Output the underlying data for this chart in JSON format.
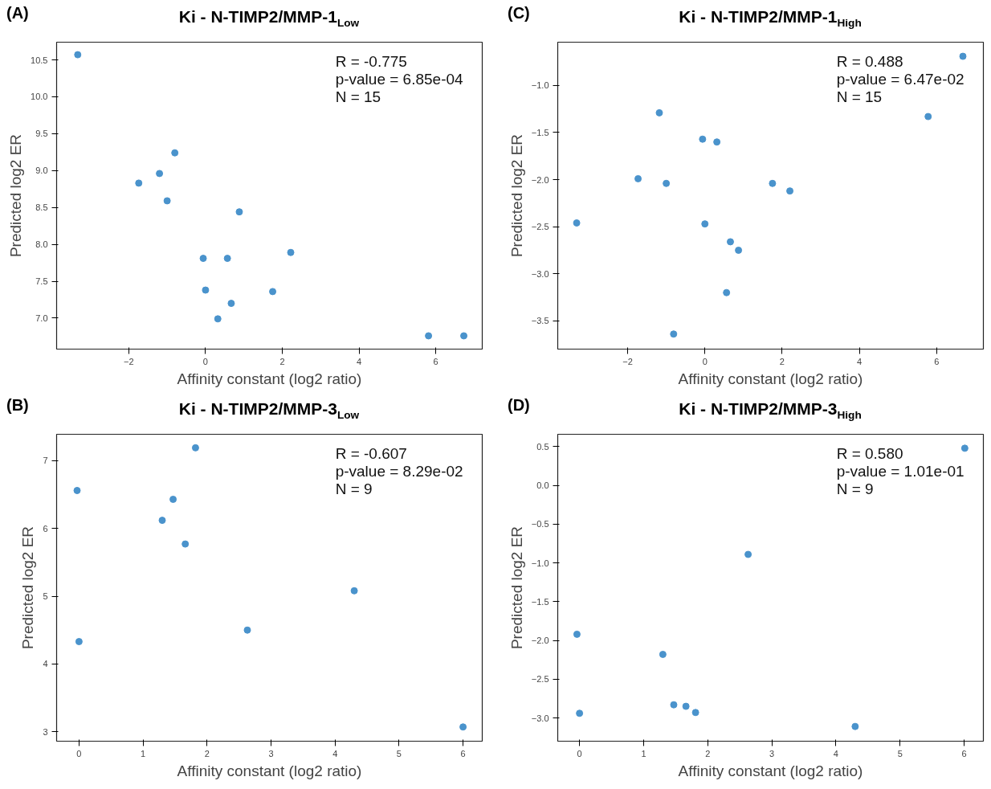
{
  "chart_data": [
    {
      "type": "scatter",
      "title": "Ki - N-TIMP2/MMP-1$_{Low}$",
      "xlabel": "Affinity constant (log2 ratio)",
      "ylabel": "Predicted log2 ER",
      "annotations": [
        "(A)",
        "R = -0.775",
        "p-value = 6.85e-04",
        "N = 15"
      ],
      "marker": "circle",
      "color": "#4a93cc",
      "x": [
        -3.33,
        -0.8,
        -1.2,
        -1.74,
        -1.0,
        0.88,
        -0.06,
        0.57,
        2.22,
        0.0,
        1.75,
        0.67,
        0.32,
        5.81,
        6.73
      ],
      "values": [
        10.57,
        9.24,
        8.96,
        8.83,
        8.59,
        8.44,
        7.81,
        7.81,
        7.89,
        7.38,
        7.36,
        7.2,
        6.99,
        6.76,
        6.76
      ],
      "xlim": [
        -3.88,
        7.21
      ],
      "ylim": [
        6.58,
        10.74
      ],
      "xticks": [
        {
          "value": -2,
          "label": "−2"
        },
        0,
        2,
        4,
        6
      ],
      "yticks": [
        {
          "value": 7,
          "label": "7.0"
        },
        7.5,
        {
          "value": 8,
          "label": "8.0"
        },
        8.5,
        {
          "value": 9,
          "label": "9.0"
        },
        9.5,
        {
          "value": 10,
          "label": "10.0"
        },
        10.5
      ]
    },
    {
      "type": "scatter",
      "title": "Ki - N-TIMP2/MMP-1$_{High}$",
      "xlabel": "Affinity constant (log2 ratio)",
      "ylabel": "Predicted log2 ER",
      "annotations": [
        "(C)",
        "R = 0.488",
        "p-value = 6.47e-02",
        "N = 15"
      ],
      "marker": "circle",
      "color": "#4a93cc",
      "x": [
        6.68,
        -1.18,
        5.78,
        -0.06,
        0.31,
        -1.73,
        -1.0,
        1.75,
        2.2,
        -3.32,
        0.0,
        0.66,
        0.87,
        0.56,
        -0.81
      ],
      "values": [
        -0.69,
        -1.29,
        -1.33,
        -1.57,
        -1.6,
        -1.99,
        -2.04,
        -2.04,
        -2.12,
        -2.46,
        -2.47,
        -2.66,
        -2.75,
        -3.2,
        -3.64
      ],
      "xlim": [
        -3.81,
        7.21
      ],
      "ylim": [
        -3.8,
        -0.54
      ],
      "xticks": [
        {
          "value": -2,
          "label": "−2"
        },
        0,
        2,
        4,
        6
      ],
      "yticks": [
        {
          "value": -3.5,
          "label": "−3.5"
        },
        {
          "value": -3,
          "label": "−3.0"
        },
        {
          "value": -2.5,
          "label": "−2.5"
        },
        {
          "value": -2,
          "label": "−2.0"
        },
        {
          "value": -1.5,
          "label": "−1.5"
        },
        {
          "value": -1,
          "label": "−1.0"
        }
      ]
    },
    {
      "type": "scatter",
      "title": "Ki - N-TIMP2/MMP-3$_{Low}$",
      "xlabel": "Affinity constant (log2 ratio)",
      "ylabel": "Predicted log2 ER",
      "annotations": [
        "(B)",
        "R = -0.607",
        "p-value = 8.29e-02",
        "N = 9"
      ],
      "marker": "circle",
      "color": "#4a93cc",
      "x": [
        -0.03,
        0.0,
        1.82,
        1.47,
        1.3,
        1.66,
        2.63,
        4.3,
        6.0
      ],
      "values": [
        6.56,
        4.33,
        7.19,
        6.43,
        6.12,
        5.77,
        4.5,
        5.08,
        3.07
      ],
      "xlim": [
        -0.35,
        6.3
      ],
      "ylim": [
        2.86,
        7.39
      ],
      "xticks": [
        0,
        1,
        2,
        3,
        4,
        5,
        6
      ],
      "yticks": [
        3,
        4,
        5,
        6,
        7
      ]
    },
    {
      "type": "scatter",
      "title": "Ki - N-TIMP2/MMP-3$_{High}$",
      "xlabel": "Affinity constant (log2 ratio)",
      "ylabel": "Predicted log2 ER",
      "annotations": [
        "(D)",
        "R = 0.580",
        "p-value = 1.01e-01",
        "N = 9"
      ],
      "marker": "circle",
      "color": "#4a93cc",
      "x": [
        6.01,
        2.63,
        -0.04,
        1.3,
        0.0,
        1.47,
        1.66,
        1.81,
        4.3
      ],
      "values": [
        0.48,
        -0.89,
        -1.92,
        -2.18,
        -2.94,
        -2.83,
        -2.85,
        -2.93,
        -3.11
      ],
      "xlim": [
        -0.34,
        6.3
      ],
      "ylim": [
        -3.3,
        0.66
      ],
      "xticks": [
        0,
        1,
        2,
        3,
        4,
        5,
        6
      ],
      "yticks": [
        {
          "value": -3,
          "label": "−3.0"
        },
        {
          "value": -2.5,
          "label": "−2.5"
        },
        {
          "value": -2,
          "label": "−2.0"
        },
        {
          "value": -1.5,
          "label": "−1.5"
        },
        {
          "value": -1,
          "label": "−1.0"
        },
        {
          "value": -0.5,
          "label": "−0.5"
        },
        {
          "value": 0,
          "label": "0.0"
        },
        0.5
      ]
    }
  ]
}
